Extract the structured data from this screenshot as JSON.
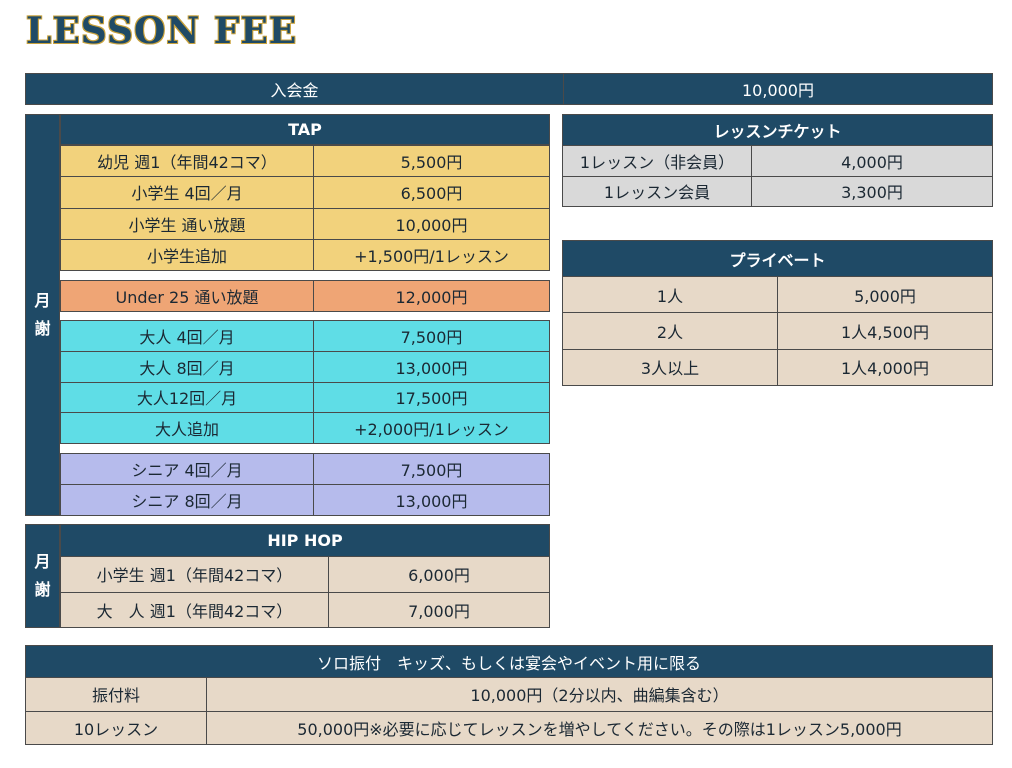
{
  "title": "LESSON FEE",
  "admission": {
    "label": "入会金",
    "value": "10,000円"
  },
  "monthly_label": [
    "月",
    "謝"
  ],
  "tap": {
    "header": "TAP",
    "groups": [
      {
        "color": "yellow",
        "rows": [
          [
            "幼児 週1（年間42コマ）",
            "5,500円"
          ],
          [
            "小学生 4回／月",
            "6,500円"
          ],
          [
            "小学生 通い放題",
            "10,000円"
          ],
          [
            "小学生追加",
            "+1,500円/1レッスン"
          ]
        ]
      },
      {
        "color": "orange",
        "rows": [
          [
            "Under 25 通い放題",
            "12,000円"
          ]
        ]
      },
      {
        "color": "cyan",
        "rows": [
          [
            "大人 4回／月",
            "7,500円"
          ],
          [
            "大人 8回／月",
            "13,000円"
          ],
          [
            "大人12回／月",
            "17,500円"
          ],
          [
            "大人追加",
            "+2,000円/1レッスン"
          ]
        ]
      },
      {
        "color": "lavender",
        "rows": [
          [
            "シニア 4回／月",
            "7,500円"
          ],
          [
            "シニア 8回／月",
            "13,000円"
          ]
        ]
      }
    ]
  },
  "hiphop": {
    "header": "HIP HOP",
    "rows": [
      [
        "小学生 週1（年間42コマ）",
        "6,000円"
      ],
      [
        "大　人 週1（年間42コマ）",
        "7,000円"
      ]
    ]
  },
  "ticket": {
    "header": "レッスンチケット",
    "rows": [
      [
        "1レッスン（非会員）",
        "4,000円"
      ],
      [
        "1レッスン会員",
        "3,300円"
      ]
    ]
  },
  "private": {
    "header": "プライベート",
    "rows": [
      [
        "1人",
        "5,000円"
      ],
      [
        "2人",
        "1人4,500円"
      ],
      [
        "3人以上",
        "1人4,000円"
      ]
    ]
  },
  "solo": {
    "header": "ソロ振付　キッズ、もしくは宴会やイベント用に限る",
    "rows": [
      [
        "振付料",
        "10,000円（2分以内、曲編集含む）"
      ],
      [
        "10レッスン",
        "50,000円※必要に応じてレッスンを増やしてください。その際は1レッスン5,000円"
      ]
    ]
  },
  "colors": {
    "navy": "#1f4a66",
    "yellow": "#f2d27c",
    "orange": "#efa575",
    "cyan": "#5fdde6",
    "lavender": "#b6bbec",
    "beige": "#e7d9c8",
    "gray": "#d9d9d9"
  }
}
